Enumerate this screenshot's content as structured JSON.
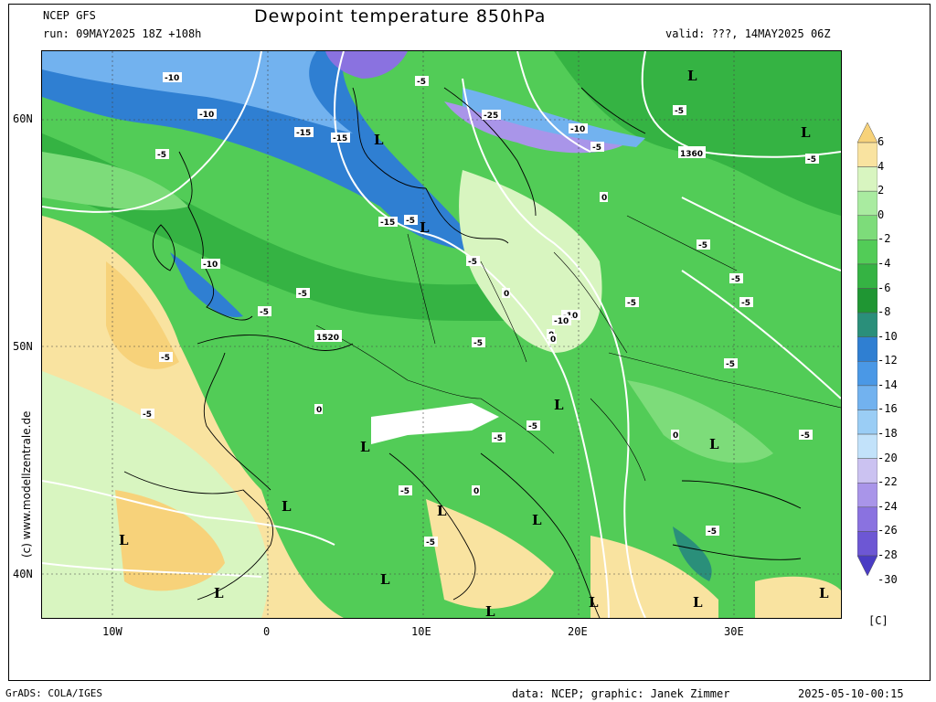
{
  "header": {
    "model": "NCEP GFS",
    "run": "run: 09MAY2025 18Z +108h",
    "title": "Dewpoint temperature 850hPa",
    "valid": "valid: ???, 14MAY2025 06Z"
  },
  "footer": {
    "grads": "GrADS: COLA/IGES",
    "credit": "data: NCEP; graphic: Janek Zimmer",
    "timestamp": "2025-05-10-00:15"
  },
  "watermark": "(c) www.modellzentrale.de",
  "axes": {
    "lat_labels": [
      "60N",
      "50N",
      "40N"
    ],
    "lon_labels": [
      "10W",
      "0",
      "10E",
      "20E",
      "30E"
    ]
  },
  "colorbar": {
    "unit": "[C]",
    "levels": [
      "6",
      "4",
      "2",
      "0",
      "-2",
      "-4",
      "-6",
      "-8",
      "-10",
      "-12",
      "-14",
      "-16",
      "-18",
      "-20",
      "-22",
      "-24",
      "-26",
      "-28",
      "-30"
    ],
    "colors": [
      "#f7d27a",
      "#f9e3a0",
      "#d8f5c0",
      "#a9eba0",
      "#7ddc7a",
      "#52cc57",
      "#35b343",
      "#1f9633",
      "#2a8f7a",
      "#2f7fd2",
      "#4a98e6",
      "#72b2ef",
      "#9acdf5",
      "#c2e2fa",
      "#cbc2f1",
      "#a995e9",
      "#8a72e0",
      "#6d57d4",
      "#4a3cc4"
    ]
  },
  "pressure_labels": [
    "1520",
    "1360"
  ],
  "low_symbol": "L",
  "contour_labels": [
    "-10",
    "-10",
    "-15",
    "-15",
    "-15",
    "-25",
    "-10",
    "-5",
    "-5",
    "-5",
    "-10",
    "-5",
    "-5",
    "0",
    "-5",
    "-10",
    "-5",
    "-5",
    "-5",
    "0",
    "-5",
    "-10",
    "-5",
    "-5",
    "0",
    "-5",
    "0",
    "-5",
    "-5",
    "0",
    "-5",
    "-5",
    "-5",
    "-5",
    "0",
    "-5",
    "0",
    "-5",
    "-5",
    "-5"
  ]
}
